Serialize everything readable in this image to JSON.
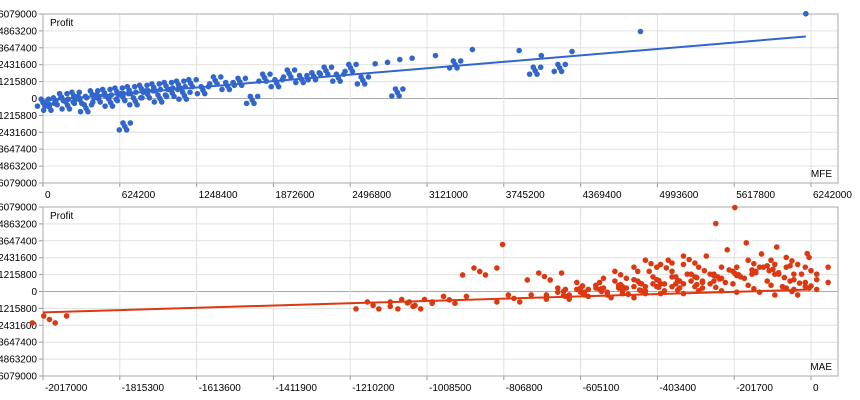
{
  "chart_data": [
    {
      "type": "scatter",
      "ylabel": "Profit",
      "xlabel": "MFE",
      "xlim": [
        0,
        6600000
      ],
      "ylim": [
        -6079000,
        6079000
      ],
      "xticks": [
        "0",
        "624200",
        "1248400",
        "1872600",
        "2496800",
        "3121000",
        "3745200",
        "4369400",
        "4993600",
        "5617800",
        "6242000"
      ],
      "xtick_values": [
        0,
        624200,
        1248400,
        1872600,
        2496800,
        3121000,
        3745200,
        4369400,
        4993600,
        5617800,
        6242000
      ],
      "yticks": [
        "6079000",
        "4863200",
        "3647400",
        "2431600",
        "1215800",
        "0",
        "-1215800",
        "-2431600",
        "-3647400",
        "-4863200",
        "-6079000"
      ],
      "ytick_values": [
        6079000,
        4863200,
        3647400,
        2431600,
        1215800,
        0,
        -1215800,
        -2431600,
        -3647400,
        -4863200,
        -6079000
      ],
      "grid": true,
      "color": "#3366cc",
      "trendline": [
        [
          0,
          -140000
        ],
        [
          6200000,
          4460000
        ]
      ],
      "points": [
        [
          0,
          -300000
        ],
        [
          50000,
          -600000
        ],
        [
          100000,
          -200000
        ],
        [
          150000,
          100000
        ],
        [
          200000,
          -500000
        ],
        [
          250000,
          200000
        ],
        [
          300000,
          -100000
        ],
        [
          350000,
          -700000
        ],
        [
          400000,
          300000
        ],
        [
          450000,
          0
        ],
        [
          500000,
          400000
        ],
        [
          550000,
          -300000
        ],
        [
          600000,
          500000
        ],
        [
          650000,
          100000
        ],
        [
          700000,
          600000
        ],
        [
          750000,
          -200000
        ],
        [
          800000,
          700000
        ],
        [
          850000,
          300000
        ],
        [
          900000,
          800000
        ],
        [
          950000,
          0
        ],
        [
          1000000,
          900000
        ],
        [
          1050000,
          400000
        ],
        [
          1100000,
          1000000
        ],
        [
          1150000,
          200000
        ],
        [
          1200000,
          1100000
        ],
        [
          1300000,
          600000
        ],
        [
          1400000,
          1300000
        ],
        [
          1500000,
          900000
        ],
        [
          1600000,
          1200000
        ],
        [
          1700000,
          -100000
        ],
        [
          1800000,
          1500000
        ],
        [
          1900000,
          1100000
        ],
        [
          2000000,
          1800000
        ],
        [
          2100000,
          1400000
        ],
        [
          2200000,
          1600000
        ],
        [
          2300000,
          2000000
        ],
        [
          2400000,
          1500000
        ],
        [
          2500000,
          2200000
        ],
        [
          2600000,
          1300000
        ],
        [
          2700000,
          2500000
        ],
        [
          2800000,
          2600000
        ],
        [
          2880000,
          430000
        ],
        [
          2900000,
          2800000
        ],
        [
          3000000,
          2900000
        ],
        [
          3190000,
          3090000
        ],
        [
          3350000,
          2450000
        ],
        [
          3490000,
          3520000
        ],
        [
          3870000,
          3450000
        ],
        [
          4050000,
          3090000
        ],
        [
          4000000,
          2000000
        ],
        [
          4300000,
          3380000
        ],
        [
          4200000,
          2200000
        ],
        [
          4856000,
          4820000
        ],
        [
          6200000,
          6100000
        ],
        [
          665000,
          -2010000
        ]
      ]
    },
    {
      "type": "scatter",
      "ylabel": "Profit",
      "xlabel": "MAE",
      "xlim": [
        -2017000,
        140000
      ],
      "ylim": [
        -6079000,
        6079000
      ],
      "xticks": [
        "-2017000",
        "-1815300",
        "-1613600",
        "-1411900",
        "-1210200",
        "-1008500",
        "-806800",
        "-605100",
        "-403400",
        "-201700",
        "0"
      ],
      "xtick_values": [
        -2017000,
        -1815300,
        -1613600,
        -1411900,
        -1210200,
        -1008500,
        -806800,
        -605100,
        -403400,
        -201700,
        0
      ],
      "yticks": [
        "6079000",
        "4863200",
        "3647400",
        "2431600",
        "1215800",
        "0",
        "-1215800",
        "-2431600",
        "-3647400",
        "-4863200",
        "-6079000"
      ],
      "ytick_values": [
        6079000,
        4863200,
        3647400,
        2431600,
        1215800,
        0,
        -1215800,
        -2431600,
        -3647400,
        -4863200,
        -6079000
      ],
      "grid": true,
      "color": "#dc3912",
      "trendline": [
        [
          -2017000,
          -1500000
        ],
        [
          0,
          140000
        ]
      ],
      "points": [
        [
          -2000000,
          -2010000
        ],
        [
          -1150000,
          -1000000
        ],
        [
          -1060000,
          -820000
        ],
        [
          -1040000,
          -1000000
        ],
        [
          -950000,
          -600000
        ],
        [
          -870000,
          1440000
        ],
        [
          -810000,
          3380000
        ],
        [
          -780000,
          -500000
        ],
        [
          -700000,
          1080000
        ],
        [
          -650000,
          -300000
        ],
        [
          -600000,
          -100000
        ],
        [
          -550000,
          200000
        ],
        [
          -500000,
          1200000
        ],
        [
          -480000,
          -200000
        ],
        [
          -450000,
          600000
        ],
        [
          -420000,
          2000000
        ],
        [
          -400000,
          300000
        ],
        [
          -380000,
          1700000
        ],
        [
          -350000,
          800000
        ],
        [
          -320000,
          2300000
        ],
        [
          -300000,
          500000
        ],
        [
          -280000,
          1500000
        ],
        [
          -250000,
          4890000
        ],
        [
          -240000,
          900000
        ],
        [
          -220000,
          3000000
        ],
        [
          -200000,
          6040000
        ],
        [
          -190000,
          1200000
        ],
        [
          -170000,
          3500000
        ],
        [
          -150000,
          2000000
        ],
        [
          -130000,
          2700000
        ],
        [
          -110000,
          1500000
        ],
        [
          -90000,
          3200000
        ],
        [
          -70000,
          1000000
        ],
        [
          -50000,
          2200000
        ],
        [
          -30000,
          600000
        ],
        [
          -10000,
          2730000
        ],
        [
          0,
          1500000
        ],
        [
          -600000,
          400000
        ],
        [
          -500000,
          500000
        ],
        [
          -400000,
          800000
        ],
        [
          -300000,
          1000000
        ],
        [
          -200000,
          1300000
        ],
        [
          -100000,
          1600000
        ],
        [
          0,
          400000
        ],
        [
          -50000,
          0
        ],
        [
          -150000,
          200000
        ],
        [
          -250000,
          300000
        ],
        [
          -350000,
          100000
        ],
        [
          -450000,
          100000
        ],
        [
          -550000,
          0
        ],
        [
          -650000,
          0
        ]
      ]
    }
  ]
}
